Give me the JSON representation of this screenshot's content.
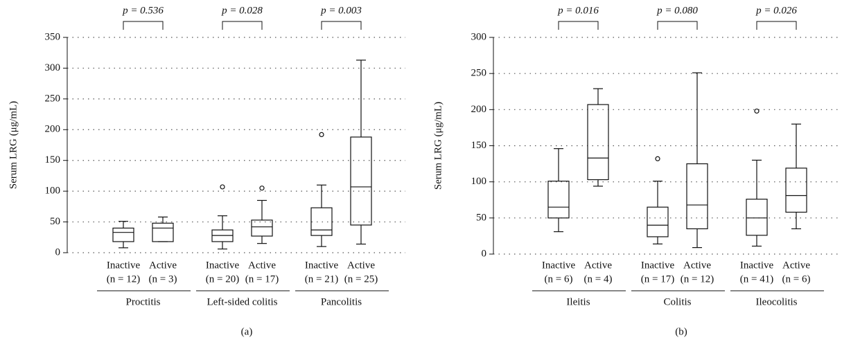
{
  "chart_data": [
    {
      "type": "box",
      "panel_label": "(a)",
      "y_label": "Serum LRG (μg/mL)",
      "ylim": [
        0,
        350
      ],
      "yticks": [
        0,
        50,
        100,
        150,
        200,
        250,
        300,
        350
      ],
      "grid": true,
      "groups": [
        {
          "name": "Proctitis",
          "p_value": "p = 0.536",
          "boxes": [
            {
              "label": "Inactive",
              "n_label": "(n = 12)",
              "whisker_low": 8,
              "q1": 18,
              "median": 33,
              "q3": 40,
              "whisker_high": 51
            },
            {
              "label": "Active",
              "n_label": "(n = 3)",
              "whisker_low": 18,
              "q1": 18,
              "median": 40,
              "q3": 48,
              "whisker_high": 58
            }
          ]
        },
        {
          "name": "Left-sided colitis",
          "p_value": "p = 0.028",
          "boxes": [
            {
              "label": "Inactive",
              "n_label": "(n = 20)",
              "whisker_low": 6,
              "q1": 18,
              "median": 28,
              "q3": 37,
              "whisker_high": 60,
              "outliers": [
                107
              ]
            },
            {
              "label": "Active",
              "n_label": "(n = 17)",
              "whisker_low": 15,
              "q1": 27,
              "median": 42,
              "q3": 53,
              "whisker_high": 85,
              "outliers": [
                105
              ]
            }
          ]
        },
        {
          "name": "Pancolitis",
          "p_value": "p = 0.003",
          "boxes": [
            {
              "label": "Inactive",
              "n_label": "(n = 21)",
              "whisker_low": 10,
              "q1": 28,
              "median": 37,
              "q3": 73,
              "whisker_high": 110,
              "outliers": [
                192
              ]
            },
            {
              "label": "Active",
              "n_label": "(n = 25)",
              "whisker_low": 14,
              "q1": 45,
              "median": 107,
              "q3": 188,
              "whisker_high": 313
            }
          ]
        }
      ]
    },
    {
      "type": "box",
      "panel_label": "(b)",
      "y_label": "Serum LRG (μg/mL)",
      "ylim": [
        0,
        300
      ],
      "yticks": [
        0,
        50,
        100,
        150,
        200,
        250,
        300
      ],
      "grid": true,
      "groups": [
        {
          "name": "Ileitis",
          "p_value": "p = 0.016",
          "boxes": [
            {
              "label": "Inactive",
              "n_label": "(n = 6)",
              "whisker_low": 31,
              "q1": 50,
              "median": 65,
              "q3": 101,
              "whisker_high": 146
            },
            {
              "label": "Active",
              "n_label": "(n = 4)",
              "whisker_low": 94,
              "q1": 103,
              "median": 133,
              "q3": 207,
              "whisker_high": 229
            }
          ]
        },
        {
          "name": "Colitis",
          "p_value": "p = 0.080",
          "boxes": [
            {
              "label": "Inactive",
              "n_label": "(n = 17)",
              "whisker_low": 14,
              "q1": 24,
              "median": 40,
              "q3": 65,
              "whisker_high": 101,
              "outliers": [
                132
              ]
            },
            {
              "label": "Active",
              "n_label": "(n = 12)",
              "whisker_low": 9,
              "q1": 35,
              "median": 68,
              "q3": 125,
              "whisker_high": 251
            }
          ]
        },
        {
          "name": "Ileocolitis",
          "p_value": "p = 0.026",
          "boxes": [
            {
              "label": "Inactive",
              "n_label": "(n = 41)",
              "whisker_low": 11,
              "q1": 26,
              "median": 50,
              "q3": 76,
              "whisker_high": 130,
              "outliers": [
                198
              ]
            },
            {
              "label": "Active",
              "n_label": "(n = 6)",
              "whisker_low": 35,
              "q1": 58,
              "median": 81,
              "q3": 119,
              "whisker_high": 180
            }
          ]
        }
      ]
    }
  ]
}
